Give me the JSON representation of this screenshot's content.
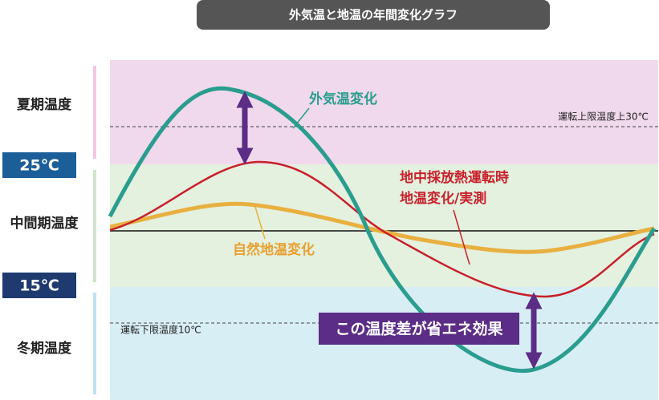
{
  "title": "外気温と地温の年間変化グラフ",
  "zones": {
    "summer": "夏期温度",
    "middle": "中間期温度",
    "winter": "冬期温度"
  },
  "temperatures": {
    "upper": "25℃",
    "lower": "15℃"
  },
  "limits": {
    "upper": "運転上限温度上30℃",
    "lower": "運転下限温度10℃"
  },
  "curves": {
    "outdoor": "外気温変化",
    "operation_1": "地中採放熱運転時",
    "operation_2": "地温変化/実測",
    "natural": "自然地温変化"
  },
  "callout": "この温度差が省エネ効果"
}
